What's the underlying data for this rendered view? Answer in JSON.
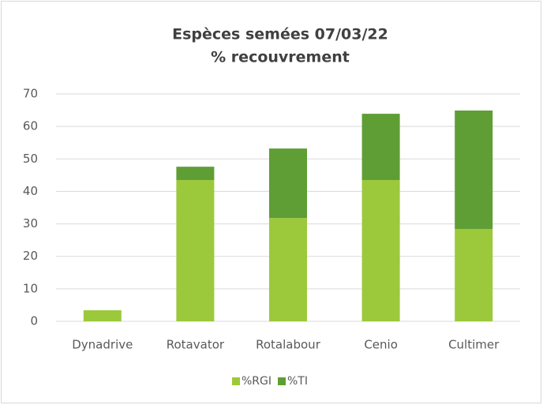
{
  "chart_data": {
    "type": "bar",
    "stacked": true,
    "title": "Espèces semées 07/03/22",
    "subtitle": "% recouvrement",
    "categories": [
      "Dynadrive",
      "Rotavator",
      "Rotalabour",
      "Cenio",
      "Cultimer"
    ],
    "series": [
      {
        "name": "%RGI",
        "color": "#9bc93b",
        "values": [
          3.4,
          43.5,
          31.8,
          43.5,
          28.4
        ]
      },
      {
        "name": "%TI",
        "color": "#5f9e35",
        "values": [
          0,
          4.1,
          21.4,
          20.4,
          36.5
        ]
      }
    ],
    "ylim": [
      0,
      70
    ],
    "yticks": [
      0,
      10,
      20,
      30,
      40,
      50,
      60,
      70
    ],
    "grid": true,
    "legend": "bottom"
  }
}
